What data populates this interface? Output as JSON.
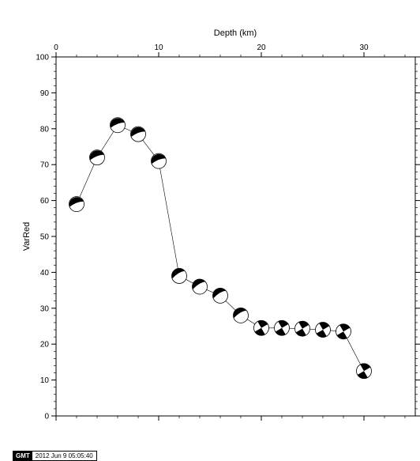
{
  "chart_data": {
    "type": "scatter",
    "xlabel": "Depth (km)",
    "ylabel": "VarRed",
    "xlim": [
      0,
      35
    ],
    "ylim": [
      0,
      100
    ],
    "x_ticks": [
      0,
      10,
      20,
      30
    ],
    "y_ticks": [
      0,
      10,
      20,
      30,
      40,
      50,
      60,
      70,
      80,
      90,
      100
    ],
    "x_ticks_top": true,
    "grid": false,
    "markers": "focal-mechanism beachballs joined by a thin line",
    "x": [
      2,
      4,
      6,
      8,
      10,
      12,
      14,
      16,
      18,
      20,
      22,
      24,
      26,
      28,
      30
    ],
    "y": [
      59,
      72,
      81,
      78.5,
      71,
      39,
      36,
      33.5,
      28,
      24.5,
      24.5,
      24.3,
      24,
      23.5,
      12.5
    ]
  },
  "stamp": {
    "logo": "GMT",
    "timestamp": "2012 Jun  9 05:05:40"
  }
}
